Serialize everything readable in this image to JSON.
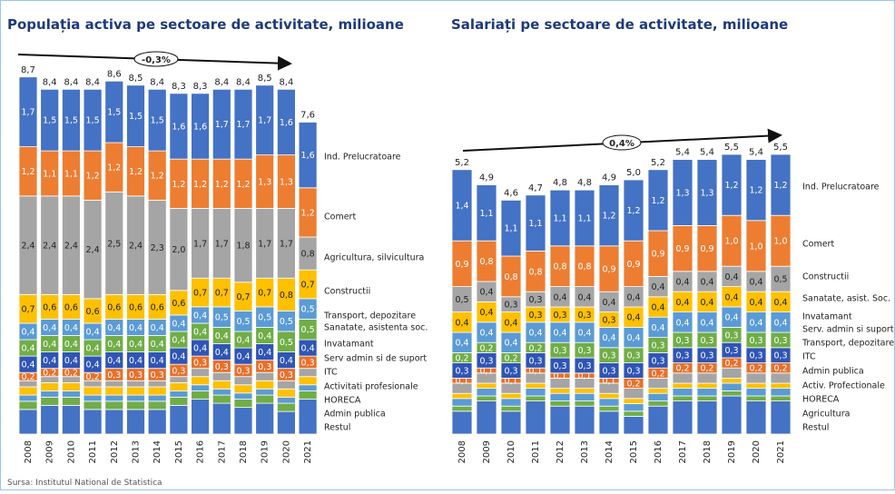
{
  "source": "Sursa: Institutul National de Statistica",
  "chart_data": [
    {
      "type": "stacked_bar",
      "title": "Populația activa pe sectoare de activitate, milioane",
      "annotation": "-0,3%",
      "categories": [
        "2008",
        "2009",
        "2010",
        "2011",
        "2012",
        "2013",
        "2014",
        "2015",
        "2016",
        "2017",
        "2018",
        "2019",
        "2020",
        "2021"
      ],
      "totals": [
        8.7,
        8.4,
        8.4,
        8.4,
        8.6,
        8.5,
        8.4,
        8.3,
        8.3,
        8.4,
        8.4,
        8.5,
        8.4,
        7.6
      ],
      "total_labels": [
        "8,7",
        "8,4",
        "8,4",
        "8,4",
        "8,6",
        "8,5",
        "8,4",
        "8,3",
        "8,3",
        "8,4",
        "8,4",
        "8,5",
        "8,4",
        "7,6"
      ],
      "series": [
        {
          "name": "Ind. Prelucratoare",
          "color": "#4472c4",
          "values": [
            1.7,
            1.5,
            1.5,
            1.5,
            1.5,
            1.5,
            1.5,
            1.6,
            1.6,
            1.7,
            1.7,
            1.7,
            1.6,
            1.6
          ],
          "value_labels": [
            "1,7",
            "1,5",
            "1,5",
            "1,5",
            "1,5",
            "1,5",
            "1,5",
            "1,6",
            "1,6",
            "1,7",
            "1,7",
            "1,7",
            "1,6",
            "1,6"
          ]
        },
        {
          "name": "Comert",
          "color": "#ed7d31",
          "values": [
            1.2,
            1.1,
            1.1,
            1.2,
            1.2,
            1.2,
            1.2,
            1.2,
            1.2,
            1.2,
            1.2,
            1.3,
            1.3,
            1.2
          ],
          "value_labels": [
            "1,2",
            "1,1",
            "1,1",
            "1,2",
            "1,2",
            "1,2",
            "1,2",
            "1,2",
            "1,2",
            "1,2",
            "1,2",
            "1,3",
            "1,3",
            "1,2"
          ]
        },
        {
          "name": "Agricultura, silvicultura",
          "color": "#a5a5a5",
          "values": [
            2.4,
            2.4,
            2.4,
            2.4,
            2.5,
            2.4,
            2.3,
            2.0,
            1.7,
            1.7,
            1.8,
            1.7,
            1.7,
            0.8
          ],
          "value_labels": [
            "2,4",
            "2,4",
            "2,4",
            "2,4",
            "2,5",
            "2,4",
            "2,3",
            "2,0",
            "1,7",
            "1,7",
            "1,8",
            "1,7",
            "1,7",
            "0,8"
          ]
        },
        {
          "name": "Constructii",
          "color": "#ffc000",
          "values": [
            0.7,
            0.6,
            0.6,
            0.6,
            0.6,
            0.6,
            0.6,
            0.6,
            0.7,
            0.7,
            0.7,
            0.7,
            0.8,
            0.7
          ],
          "value_labels": [
            "0,7",
            "0,6",
            "0,6",
            "0,6",
            "0,6",
            "0,6",
            "0,6",
            "0,6",
            "0,7",
            "0,7",
            "0,7",
            "0,7",
            "0,8",
            "0,7"
          ]
        },
        {
          "name": "Transport, depozitare",
          "color": "#5b9bd5",
          "values": [
            0.4,
            0.4,
            0.4,
            0.4,
            0.4,
            0.4,
            0.4,
            0.4,
            0.4,
            0.5,
            0.5,
            0.5,
            0.5,
            0.5
          ],
          "value_labels": [
            "0,4",
            "0,4",
            "0,4",
            "0,4",
            "0,4",
            "0,4",
            "0,4",
            "0,4",
            "0,4",
            "0,5",
            "0,5",
            "0,5",
            "0,5",
            "0,5"
          ]
        },
        {
          "name": "Sanatate, asistenta soc.",
          "color": "#70ad47",
          "values": [
            0.4,
            0.4,
            0.4,
            0.4,
            0.4,
            0.4,
            0.4,
            0.4,
            0.4,
            0.4,
            0.4,
            0.4,
            0.5,
            0.5
          ],
          "value_labels": [
            "0,4",
            "0,4",
            "0,4",
            "0,4",
            "0,4",
            "0,4",
            "0,4",
            "0,4",
            "0,4",
            "0,4",
            "0,4",
            "0,4",
            "0,5",
            "0,5"
          ]
        },
        {
          "name": "Invatamant",
          "color": "#2f55b5",
          "values": [
            0.4,
            0.4,
            0.4,
            0.4,
            0.4,
            0.4,
            0.4,
            0.4,
            0.4,
            0.4,
            0.4,
            0.4,
            0.4,
            0.4
          ],
          "value_labels": [
            "0,4",
            "0,4",
            "0,4",
            "0,4",
            "0,4",
            "0,4",
            "0,4",
            "0,4",
            "0,4",
            "0,4",
            "0,4",
            "0,4",
            "0,4",
            "0,4"
          ]
        },
        {
          "name": "Serv admin si de suport",
          "color": "#e8702a",
          "values": [
            0.2,
            0.2,
            0.2,
            0.2,
            0.3,
            0.3,
            0.3,
            0.3,
            0.3,
            0.3,
            0.3,
            0.3,
            0.3,
            0.3
          ],
          "value_labels": [
            "0,2",
            "0,2",
            "0,2",
            "0,2",
            "0,3",
            "0,3",
            "0,3",
            "0,3",
            "0,3",
            "0,3",
            "0,3",
            "0,3",
            "0,3",
            "0,3"
          ]
        },
        {
          "name": "ITC",
          "color": "#a5a5a5",
          "values": [
            0.15,
            0.15,
            0.15,
            0.15,
            0.15,
            0.15,
            0.15,
            0.15,
            0.2,
            0.2,
            0.2,
            0.2,
            0.2,
            0.2
          ]
        },
        {
          "name": "Activitati profesionale",
          "color": "#ffc000",
          "values": [
            0.2,
            0.2,
            0.2,
            0.2,
            0.2,
            0.2,
            0.2,
            0.2,
            0.2,
            0.2,
            0.2,
            0.2,
            0.2,
            0.2
          ]
        },
        {
          "name": "HORECA",
          "color": "#5b9bd5",
          "values": [
            0.15,
            0.15,
            0.15,
            0.15,
            0.15,
            0.15,
            0.15,
            0.15,
            0.15,
            0.15,
            0.15,
            0.15,
            0.15,
            0.15
          ]
        },
        {
          "name": "Admin publica",
          "color": "#70ad47",
          "values": [
            0.2,
            0.2,
            0.2,
            0.2,
            0.2,
            0.2,
            0.2,
            0.2,
            0.2,
            0.2,
            0.2,
            0.2,
            0.2,
            0.2
          ]
        },
        {
          "name": "Restul",
          "color": "#4472c4",
          "values": [
            0.6,
            0.7,
            0.7,
            0.6,
            0.6,
            0.6,
            0.6,
            0.7,
            0.85,
            0.75,
            0.65,
            0.75,
            0.55,
            0.85
          ]
        }
      ]
    },
    {
      "type": "stacked_bar",
      "title": "Salariați pe sectoare de activitate, milioane",
      "annotation": "0,4%",
      "categories": [
        "2008",
        "2009",
        "2010",
        "2011",
        "2012",
        "2013",
        "2014",
        "2015",
        "2016",
        "2017",
        "2018",
        "2019",
        "2020",
        "2021"
      ],
      "totals": [
        5.2,
        4.9,
        4.6,
        4.7,
        4.8,
        4.8,
        4.9,
        5.0,
        5.2,
        5.4,
        5.4,
        5.5,
        5.4,
        5.5
      ],
      "total_labels": [
        "5,2",
        "4,9",
        "4,6",
        "4,7",
        "4,8",
        "4,8",
        "4,9",
        "5,0",
        "5,2",
        "5,4",
        "5,4",
        "5,5",
        "5,4",
        "5,5"
      ],
      "series": [
        {
          "name": "Ind. Prelucratoare",
          "color": "#4472c4",
          "values": [
            1.4,
            1.1,
            1.1,
            1.1,
            1.1,
            1.1,
            1.2,
            1.2,
            1.2,
            1.3,
            1.3,
            1.2,
            1.2,
            1.2
          ],
          "value_labels": [
            "1,4",
            "1,1",
            "1,1",
            "1,1",
            "1,1",
            "1,1",
            "1,2",
            "1,2",
            "1,2",
            "1,3",
            "1,3",
            "1,2",
            "1,2",
            "1,2"
          ]
        },
        {
          "name": "Comert",
          "color": "#ed7d31",
          "values": [
            0.9,
            0.8,
            0.8,
            0.8,
            0.8,
            0.8,
            0.9,
            0.9,
            0.9,
            0.9,
            0.9,
            1.0,
            1.0,
            1.0
          ],
          "value_labels": [
            "0,9",
            "0,8",
            "0,8",
            "0,8",
            "0,8",
            "0,8",
            "0,9",
            "0,9",
            "0,9",
            "0,9",
            "0,9",
            "1,0",
            "1,0",
            "1,0"
          ]
        },
        {
          "name": "Constructii",
          "color": "#a5a5a5",
          "values": [
            0.5,
            0.4,
            0.3,
            0.3,
            0.4,
            0.4,
            0.4,
            0.4,
            0.4,
            0.4,
            0.4,
            0.4,
            0.4,
            0.5
          ],
          "value_labels": [
            "0,5",
            "0,4",
            "0,3",
            "0,3",
            "0,4",
            "0,4",
            "0,4",
            "0,4",
            "0,4",
            "0,4",
            "0,4",
            "0,4",
            "0,4",
            "0,5"
          ]
        },
        {
          "name": "Sanatate, asist. Soc.",
          "color": "#ffc000",
          "values": [
            0.4,
            0.4,
            0.4,
            0.3,
            0.3,
            0.3,
            0.3,
            0.4,
            0.4,
            0.4,
            0.4,
            0.4,
            0.4,
            0.4
          ],
          "value_labels": [
            "0,4",
            "0,4",
            "0,4",
            "0,3",
            "0,3",
            "0,3",
            "0,3",
            "0,4",
            "0,4",
            "0,4",
            "0,4",
            "0,4",
            "0,4",
            "0,4"
          ]
        },
        {
          "name": "Invatamant",
          "color": "#5b9bd5",
          "values": [
            0.4,
            0.4,
            0.4,
            0.4,
            0.4,
            0.4,
            0.4,
            0.4,
            0.4,
            0.4,
            0.4,
            0.4,
            0.4,
            0.4
          ],
          "value_labels": [
            "0,4",
            "0,4",
            "0,4",
            "0,4",
            "0,4",
            "0,4",
            "0,4",
            "0,4",
            "0,4",
            "0,4",
            "0,4",
            "0,4",
            "0,4",
            "0,4"
          ]
        },
        {
          "name": "Serv. admin si suport",
          "color": "#70ad47",
          "values": [
            0.2,
            0.2,
            0.2,
            0.2,
            0.3,
            0.3,
            0.3,
            0.3,
            0.3,
            0.3,
            0.3,
            0.3,
            0.3,
            0.3
          ],
          "value_labels": [
            "0,2",
            "0,2",
            "0,2",
            "0,2",
            "0,3",
            "0,3",
            "0,3",
            "0,3",
            "0,3",
            "0,3",
            "0,3",
            "0,3",
            "0,3",
            "0,3"
          ]
        },
        {
          "name": "Transport, depozitare",
          "color": "#2f55b5",
          "values": [
            0.3,
            0.3,
            0.3,
            0.3,
            0.3,
            0.3,
            0.3,
            0.3,
            0.3,
            0.3,
            0.3,
            0.3,
            0.3,
            0.3
          ],
          "value_labels": [
            "0,3",
            "0,3",
            "0,3",
            "0,3",
            "0,3",
            "0,3",
            "0,3",
            "0,3",
            "0,3",
            "0,3",
            "0,3",
            "0,3",
            "0,3",
            "0,3"
          ]
        },
        {
          "name": "ITC",
          "color": "#e8702a",
          "values": [
            0.1,
            0.1,
            0.1,
            0.1,
            0.1,
            0.1,
            0.1,
            0.2,
            0.2,
            0.2,
            0.2,
            0.2,
            0.2,
            0.2
          ],
          "value_labels": [
            "0,1",
            "0,1",
            "0,1",
            "0,1",
            "0,1",
            "0,1",
            "0,1",
            "0,2",
            "0,2",
            "0,2",
            "0,2",
            "0,2",
            "0,2",
            "0,2"
          ]
        },
        {
          "name": "Admin publica",
          "color": "#a5a5a5",
          "values": [
            0.2,
            0.2,
            0.2,
            0.2,
            0.2,
            0.2,
            0.2,
            0.2,
            0.2,
            0.2,
            0.2,
            0.2,
            0.2,
            0.2
          ]
        },
        {
          "name": "Activ. Profectionale",
          "color": "#ffc000",
          "values": [
            0.1,
            0.1,
            0.1,
            0.1,
            0.1,
            0.1,
            0.1,
            0.1,
            0.1,
            0.1,
            0.1,
            0.1,
            0.1,
            0.1
          ]
        },
        {
          "name": "HORECA",
          "color": "#5b9bd5",
          "values": [
            0.15,
            0.15,
            0.15,
            0.15,
            0.15,
            0.15,
            0.15,
            0.15,
            0.15,
            0.15,
            0.15,
            0.15,
            0.15,
            0.15
          ]
        },
        {
          "name": "Agricultura",
          "color": "#70ad47",
          "values": [
            0.1,
            0.1,
            0.1,
            0.1,
            0.1,
            0.1,
            0.1,
            0.1,
            0.1,
            0.1,
            0.1,
            0.1,
            0.1,
            0.1
          ]
        },
        {
          "name": "Restul",
          "color": "#4472c4",
          "values": [
            0.45,
            0.65,
            0.45,
            0.65,
            0.55,
            0.55,
            0.45,
            0.35,
            0.55,
            0.65,
            0.65,
            0.75,
            0.65,
            0.65
          ]
        }
      ]
    }
  ]
}
